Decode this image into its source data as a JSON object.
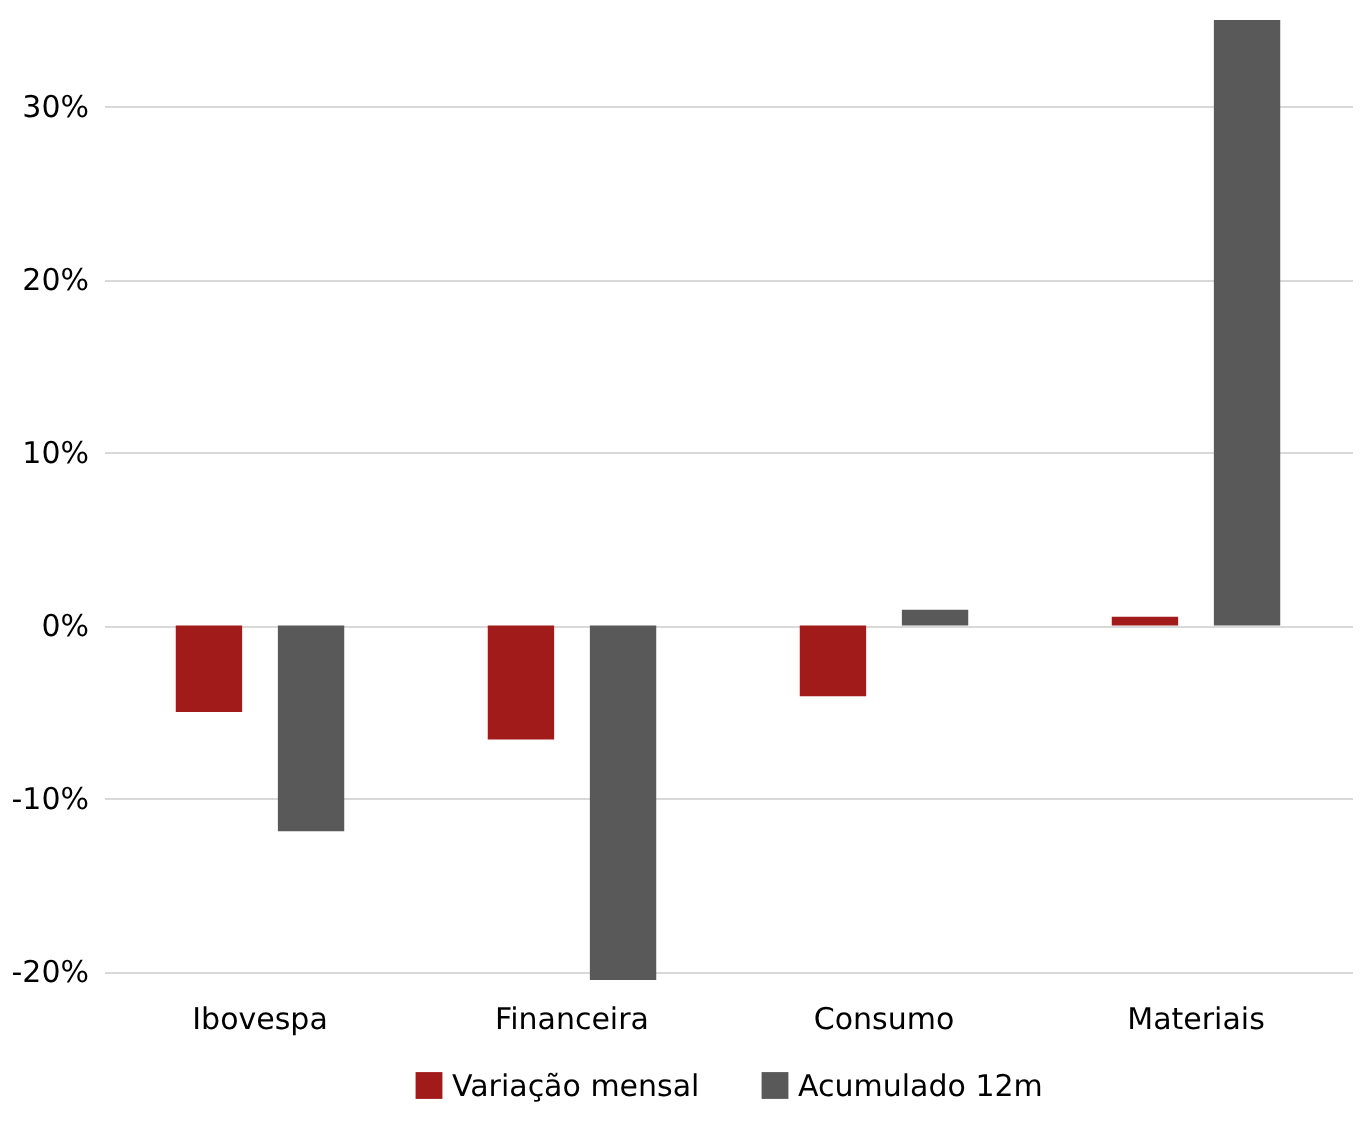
{
  "chart_data": {
    "type": "bar",
    "categories": [
      "Ibovespa",
      "Financeira",
      "Consumo",
      "Materiais"
    ],
    "series": [
      {
        "name": "Variação mensal",
        "color": "#a21b1b",
        "values": [
          -5.0,
          -6.6,
          -4.1,
          0.5
        ]
      },
      {
        "name": "Acumulado 12m",
        "color": "#595959",
        "values": [
          -11.9,
          -20.5,
          0.9,
          35.0
        ]
      }
    ],
    "ylim": [
      -20.5,
      35
    ],
    "yticks": [
      {
        "value": -20,
        "label": "-20%"
      },
      {
        "value": -10,
        "label": "-10%"
      },
      {
        "value": 0,
        "label": "0%"
      },
      {
        "value": 10,
        "label": "10%"
      },
      {
        "value": 20,
        "label": "20%"
      },
      {
        "value": 30,
        "label": "30%"
      }
    ],
    "grid": "y",
    "legend": "bottom"
  }
}
